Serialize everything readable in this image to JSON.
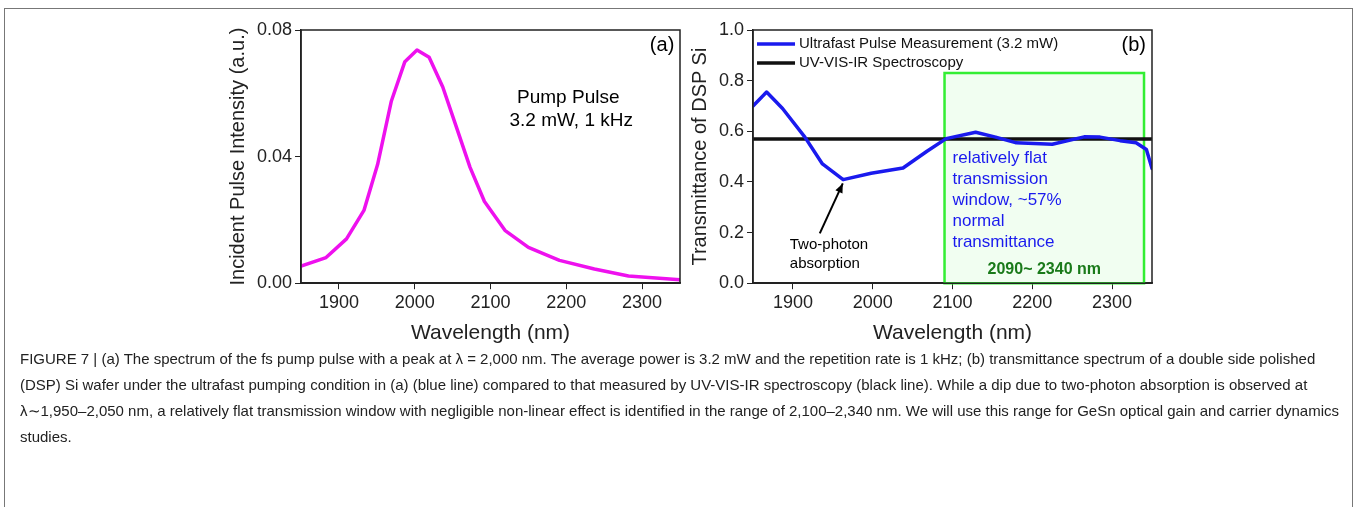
{
  "chart_data": [
    {
      "type": "line",
      "xlabel": "Wavelength (nm)",
      "ylabel": "Incident Pulse Intensity (a.u.)",
      "x": [
        1850,
        1883,
        1910,
        1933,
        1951,
        1969,
        1987,
        2003,
        2019,
        2037,
        2055,
        2073,
        2092,
        2119,
        2150,
        2191,
        2237,
        2282,
        2350
      ],
      "series": [
        {
          "color": "#ee11ee",
          "values": [
            0.0054,
            0.0081,
            0.014,
            0.023,
            0.0375,
            0.0574,
            0.07,
            0.0737,
            0.0714,
            0.062,
            0.0493,
            0.0366,
            0.0258,
            0.0167,
            0.0113,
            0.0072,
            0.0045,
            0.0023,
            0.0011
          ]
        }
      ],
      "xlim": [
        1850,
        2350
      ],
      "xticks": [
        1900,
        2000,
        2100,
        2200,
        2300
      ],
      "ylim": [
        0,
        0.08
      ],
      "yticks": [
        {
          "value": 0,
          "label": "0.00"
        },
        {
          "value": 0.04,
          "label": "0.04"
        },
        {
          "value": 0.08,
          "label": "0.08"
        }
      ],
      "grid": false,
      "legend": false,
      "marker": "none",
      "line_style": "solid",
      "annotations": [
        "(a)",
        "Pump Pulse",
        "3.2 mW, 1 kHz"
      ]
    },
    {
      "type": "line",
      "xlabel": "Wavelength (nm)",
      "ylabel": "Transmittance of DSP Si",
      "series": [
        {
          "name": "Ultrafast Pulse Measurement (3.2 mW)",
          "color": "#1a1aee",
          "x": [
            1850,
            1867,
            1887,
            1915,
            1937,
            1963,
            1998,
            2038,
            2068,
            2092,
            2129,
            2154,
            2179,
            2225,
            2265,
            2285,
            2310,
            2330,
            2343,
            2350
          ],
          "values": [
            0.7,
            0.755,
            0.69,
            0.577,
            0.471,
            0.409,
            0.434,
            0.455,
            0.521,
            0.571,
            0.596,
            0.577,
            0.555,
            0.549,
            0.578,
            0.577,
            0.563,
            0.555,
            0.528,
            0.453
          ]
        },
        {
          "name": "UV-VIS-IR Spectroscopy",
          "color": "#111111",
          "x": [
            1850,
            1950,
            2050,
            2150,
            2250,
            2350
          ],
          "values": [
            0.57,
            0.57,
            0.57,
            0.57,
            0.57,
            0.57
          ]
        }
      ],
      "xlim": [
        1850,
        2350
      ],
      "xticks": [
        1900,
        2000,
        2100,
        2200,
        2300
      ],
      "ylim": [
        0,
        1
      ],
      "yticks": [
        {
          "value": 0,
          "label": "0.0"
        },
        {
          "value": 0.2,
          "label": "0.2"
        },
        {
          "value": 0.4,
          "label": "0.4"
        },
        {
          "value": 0.6,
          "label": "0.6"
        },
        {
          "value": 0.8,
          "label": "0.8"
        },
        {
          "value": 1,
          "label": "1.0"
        }
      ],
      "grid": false,
      "legend": "top left",
      "marker": "none",
      "line_style": "solid",
      "bands": [
        {
          "axis": "x",
          "from": 2090,
          "to": 2340,
          "label": "2090~ 2340 nm",
          "color": "#33ee33"
        }
      ],
      "annotations": [
        "(b)",
        {
          "text": "Two-photon absorption",
          "x": 1965,
          "y": 0.41
        },
        "relatively flat transmission window, ~57% normal transmittance",
        "FIGURE 7 | (a) The spectrum of the fs pump pulse with a peak at λ = 2,000 nm. The average power is 3.2 mW and the repetition rate is 1 kHz; (b) transmittance spectrum of a double side polished (DSP) Si wafer under the ultrafast pumping condition in (a) (blue line) compared to that measured by UV-VIS-IR spectroscopy (black line). While a dip due to two-photon absorption is observed at λ∼1,950–2,050 nm, a relatively flat transmission window with negligible non-linear effect is identified in the range of 2,100–2,340 nm. We will use this range for GeSn optical gain and carrier dynamics studies."
      ]
    }
  ]
}
